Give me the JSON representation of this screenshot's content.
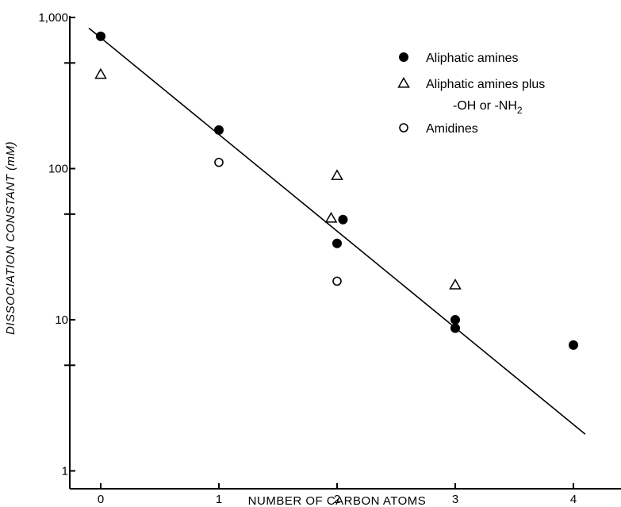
{
  "chart_data": {
    "type": "scatter",
    "xlabel": "NUMBER OF CARBON ATOMS",
    "ylabel": "DISSOCIATION CONSTANT (mM)",
    "y_scale": "log",
    "xlim": [
      -0.3,
      4.5
    ],
    "ylim": [
      1,
      1000
    ],
    "x_ticks": [
      0,
      1,
      2,
      3,
      4
    ],
    "x_tick_labels": [
      "0",
      "1",
      "2",
      "3",
      "4"
    ],
    "y_ticks": [
      1,
      10,
      100,
      1000
    ],
    "y_tick_labels": [
      "1",
      "10",
      "100",
      "1,000"
    ],
    "y_minor_ticks": [
      5,
      50,
      500
    ],
    "series": [
      {
        "name": "Aliphatic amines",
        "marker": "filled-circle",
        "points": [
          {
            "x": 0,
            "y": 750
          },
          {
            "x": 1,
            "y": 180
          },
          {
            "x": 2,
            "y": 32
          },
          {
            "x": 2.05,
            "y": 46
          },
          {
            "x": 3,
            "y": 10
          },
          {
            "x": 3,
            "y": 8.8
          },
          {
            "x": 4,
            "y": 6.8
          }
        ]
      },
      {
        "name": "Aliphatic amines plus",
        "name_line2": "-OH or -NH",
        "name_subscript": "2",
        "marker": "open-triangle",
        "points": [
          {
            "x": 0,
            "y": 420
          },
          {
            "x": 2,
            "y": 90
          },
          {
            "x": 1.95,
            "y": 47
          },
          {
            "x": 3,
            "y": 17
          }
        ]
      },
      {
        "name": "Amidines",
        "marker": "open-circle",
        "points": [
          {
            "x": 1,
            "y": 110
          },
          {
            "x": 2,
            "y": 18
          }
        ]
      }
    ],
    "fit_line": {
      "x": [
        -0.1,
        4.1
      ],
      "y": [
        850,
        1.75
      ]
    },
    "legend_position": "top-right",
    "grid": false
  }
}
